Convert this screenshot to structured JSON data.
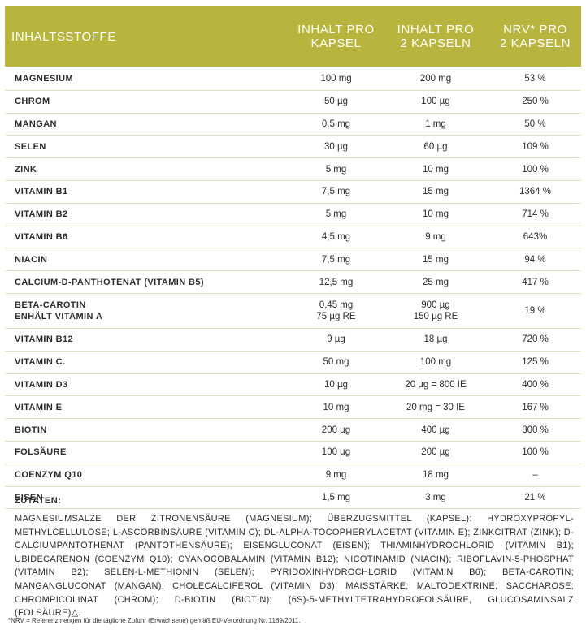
{
  "header": {
    "col0": "INHALTSSTOFFE",
    "col1": "INHALT PRO\nKAPSEL",
    "col2": "INHALT PRO\n2 KAPSELN",
    "col3": "NRV* PRO\n2 KAPSELN"
  },
  "rows": [
    {
      "name": "MAGNESIUM",
      "per1": "100 mg",
      "per2": "200 mg",
      "nrv": "53 %"
    },
    {
      "name": "CHROM",
      "per1": "50 µg",
      "per2": "100 µg",
      "nrv": "250 %"
    },
    {
      "name": "MANGAN",
      "per1": "0,5 mg",
      "per2": "1 mg",
      "nrv": "50 %"
    },
    {
      "name": "SELEN",
      "per1": "30 µg",
      "per2": "60 µg",
      "nrv": "109 %"
    },
    {
      "name": "ZINK",
      "per1": "5 mg",
      "per2": "10 mg",
      "nrv": "100 %"
    },
    {
      "name": "VITAMIN B1",
      "per1": "7,5 mg",
      "per2": "15 mg",
      "nrv": "1364 %"
    },
    {
      "name": "VITAMIN B2",
      "per1": "5 mg",
      "per2": "10 mg",
      "nrv": "714 %"
    },
    {
      "name": "VITAMIN B6",
      "per1": "4,5 mg",
      "per2": "9 mg",
      "nrv": "643%"
    },
    {
      "name": "NIACIN",
      "per1": "7,5 mg",
      "per2": "15 mg",
      "nrv": "94 %"
    },
    {
      "name": "CALCIUM-D-PANTHOTENAT (VITAMIN B5)",
      "per1": "12,5 mg",
      "per2": "25 mg",
      "nrv": "417 %"
    },
    {
      "name": "BETA-CAROTIN\nENHÄLT VITAMIN A",
      "per1": "0,45 mg\n75 µg RE",
      "per2": "900 µg\n150 µg RE",
      "nrv": "19 %",
      "tall": true
    },
    {
      "name": "VITAMIN B12",
      "per1": "9 µg",
      "per2": "18 µg",
      "nrv": "720 %"
    },
    {
      "name": "VITAMIN C.",
      "per1": "50 mg",
      "per2": "100 mg",
      "nrv": "125 %"
    },
    {
      "name": "VITAMIN D3",
      "per1": "10 µg",
      "per2": "20 µg = 800 IE",
      "nrv": "400 %"
    },
    {
      "name": "VITAMIN E",
      "per1": "10 mg",
      "per2": "20 mg = 30 IE",
      "nrv": "167 %"
    },
    {
      "name": "BIOTIN",
      "per1": "200 µg",
      "per2": "400 µg",
      "nrv": "800 %"
    },
    {
      "name": "FOLSÄURE",
      "per1": "100 µg",
      "per2": "200 µg",
      "nrv": "100 %"
    },
    {
      "name": "COENZYM Q10",
      "per1": "9 mg",
      "per2": "18 mg",
      "nrv": "–"
    },
    {
      "name": "EISEN",
      "per1": "1,5 mg",
      "per2": "3 mg",
      "nrv": "21 %"
    }
  ],
  "ingredients": {
    "title": "ZUTATEN:",
    "text": "MAGNESIUMSALZE DER ZITRONENSÄURE (MAGNESIUM); ÜBERZUGSMITTEL (KAPSEL): HYDROXYPROPYL-METHYLCELLULOSE; L-ASCORBINSÄURE (VITAMIN C); DL-ALPHA-TOCOPHERYLACETAT (VITAMIN E); ZINKCITRAT (ZINK); D-CALCIUMPANTOTHENAT (PANTOTHENSÄURE); EISENGLUCONAT (EISEN); THIAMINHYDROCHLORID (VITAMIN B1); UBIDECARENON (COENZYM Q10); CYANOCOBALAMIN (VITAMIN B12); NICOTINAMID (NIACIN); RIBOFLAVIN-5-PHOSPHAT (VITAMIN B2); SELEN-L-METHIONIN (SELEN); PYRIDOXINHYDROCHLORID (VITAMIN B6); BETA-CAROTIN; MANGANGLUCONAT (MANGAN); CHOLECALCIFEROL (VITAMIN D3); MAISSTÄRKE; MALTODEXTRINE; SACCHAROSE; CHROMPICOLINAT (CHROM); D-BIOTIN (BIOTIN); (6S)-5-METHYLTETRAHYDROFOLSÄURE, GLUCOSAMINSALZ (FOLSÄURE)△."
  },
  "footnote": "*NRV = Referenzmengen für die tägliche Zufuhr (Erwachsene) gemäß EU-Verordnung Nr. 1169/2011.",
  "colors": {
    "header_bg": "#b7b53e",
    "divider": "#e3e0c6"
  }
}
